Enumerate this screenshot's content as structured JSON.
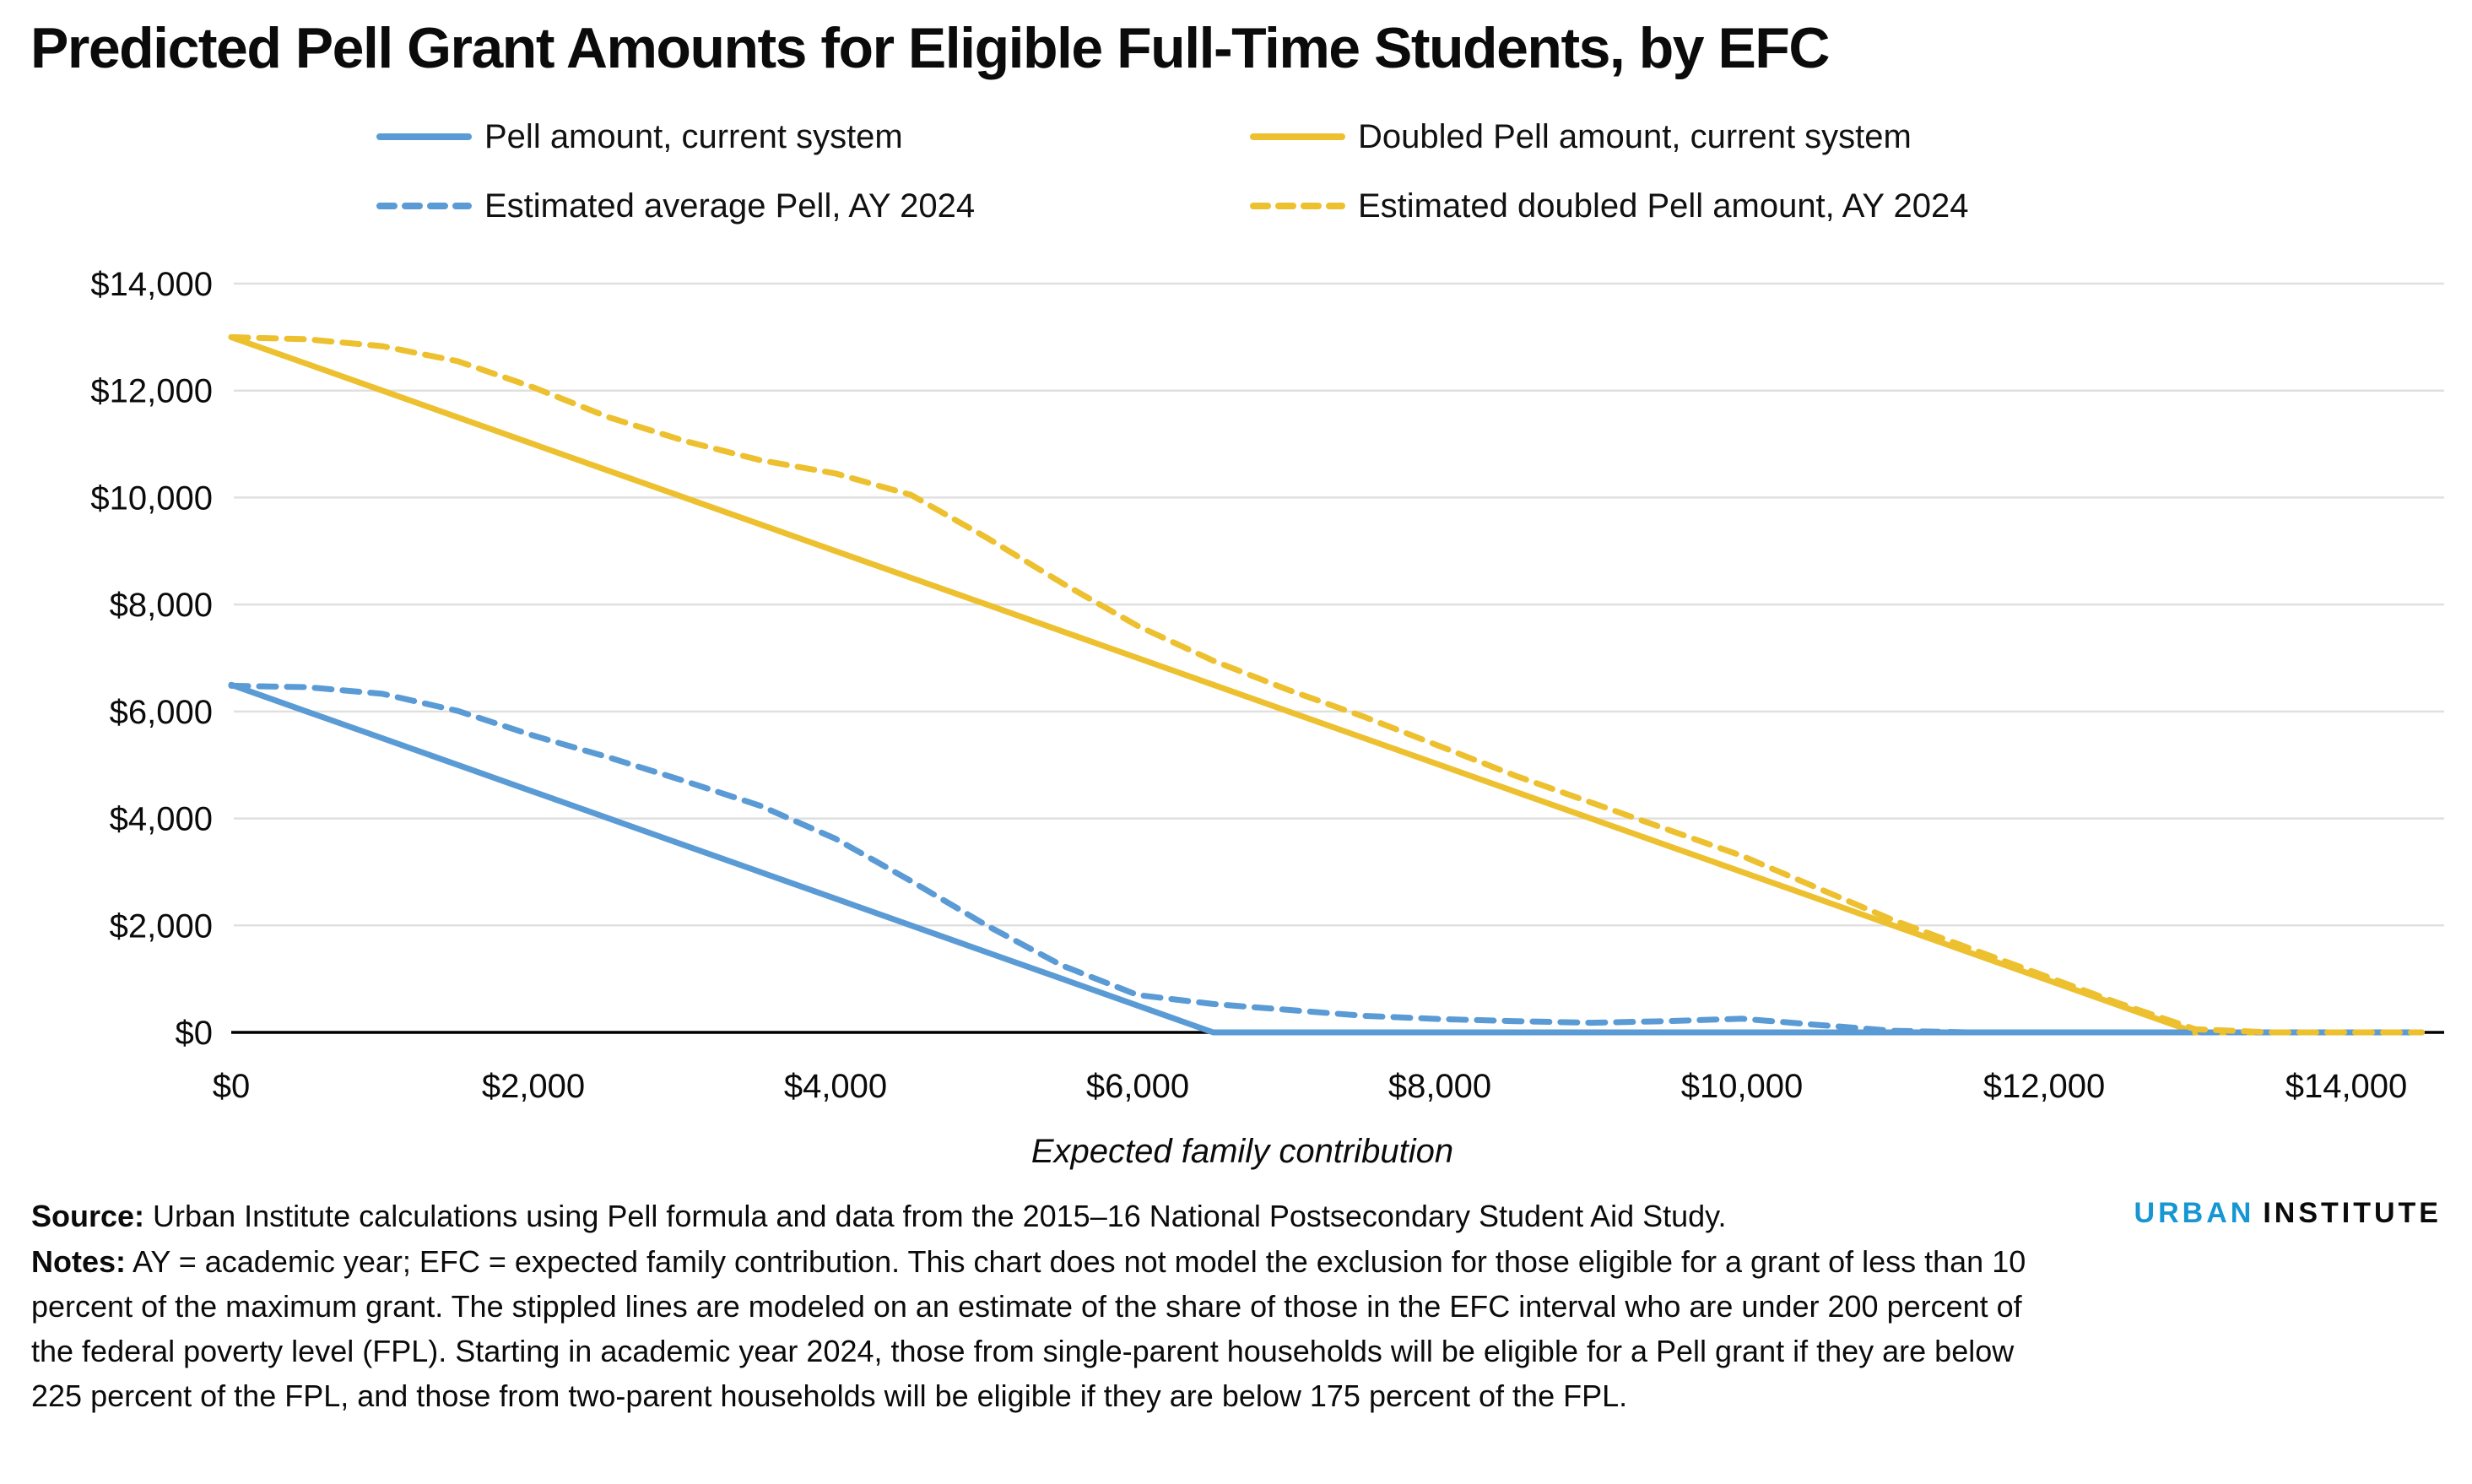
{
  "title": "Predicted Pell Grant Amounts for Eligible Full-Time Students, by EFC",
  "chart_data": {
    "type": "line",
    "xlabel": "Expected family contribution",
    "ylabel": "",
    "xlim": [
      0,
      14600
    ],
    "ylim": [
      0,
      14000
    ],
    "grid": "horizontal",
    "gridline_color": "#e0e0e0",
    "axis_color": "#000000",
    "legend_position": "top",
    "x_tick_values": [
      0,
      2000,
      4000,
      6000,
      8000,
      10000,
      12000,
      14000
    ],
    "x_tick_labels": [
      "$0",
      "$2,000",
      "$4,000",
      "$6,000",
      "$8,000",
      "$10,000",
      "$12,000",
      "$14,000"
    ],
    "y_tick_values": [
      0,
      2000,
      4000,
      6000,
      8000,
      10000,
      12000,
      14000
    ],
    "y_tick_labels": [
      "$0",
      "$2,000",
      "$4,000",
      "$6,000",
      "$8,000",
      "$10,000",
      "$12,000",
      "$14,000"
    ],
    "x": [
      0,
      500,
      1000,
      1500,
      2000,
      2500,
      3000,
      3500,
      4000,
      4500,
      5000,
      5500,
      6000,
      6500,
      7000,
      7500,
      8000,
      8500,
      9000,
      9500,
      10000,
      10500,
      11000,
      11500,
      12000,
      12500,
      13000,
      13500,
      14000,
      14500
    ],
    "series": [
      {
        "name": "Pell amount, current system",
        "color": "#5B9BD5",
        "dashed": false,
        "values": [
          6500,
          6000,
          5500,
          5000,
          4500,
          4000,
          3500,
          3000,
          2500,
          2000,
          1500,
          1000,
          500,
          0,
          0,
          0,
          0,
          0,
          0,
          0,
          0,
          0,
          0,
          0,
          0,
          0,
          0,
          0,
          0,
          0
        ]
      },
      {
        "name": "Doubled Pell amount, current system",
        "color": "#EDC02F",
        "dashed": false,
        "values": [
          13000,
          12500,
          12000,
          11500,
          11000,
          10500,
          10000,
          9500,
          9000,
          8500,
          8000,
          7500,
          7000,
          6500,
          6000,
          5500,
          5000,
          4500,
          4000,
          3500,
          3000,
          2500,
          2000,
          1500,
          1000,
          500,
          0,
          0,
          0,
          0
        ]
      },
      {
        "name": "Estimated average Pell, AY 2024",
        "color": "#5B9BD5",
        "dashed": true,
        "values": [
          6480,
          6455,
          6330,
          6010,
          5550,
          5140,
          4700,
          4240,
          3620,
          2830,
          2000,
          1250,
          700,
          530,
          420,
          310,
          250,
          210,
          180,
          210,
          255,
          140,
          30,
          0,
          0,
          0,
          0,
          0,
          0,
          0
        ]
      },
      {
        "name": "Estimated doubled Pell amount, AY 2024",
        "color": "#EDC02F",
        "dashed": true,
        "values": [
          13000,
          12960,
          12830,
          12550,
          12060,
          11500,
          11060,
          10700,
          10450,
          10050,
          9250,
          8400,
          7600,
          6950,
          6400,
          5900,
          5350,
          4800,
          4300,
          3800,
          3300,
          2700,
          2100,
          1580,
          1060,
          540,
          60,
          0,
          0,
          0
        ]
      }
    ]
  },
  "source": {
    "label": "Source:",
    "text": " Urban Institute calculations using Pell formula and data from the 2015–16 National Postsecondary Student Aid Study."
  },
  "notes": {
    "label": "Notes:",
    "text": " AY = academic year; EFC = expected family contribution. This chart does not model the exclusion for those eligible for a grant of less than 10 percent of the maximum grant. The stippled lines are modeled on an estimate of the share of those in the EFC interval who are under 200 percent of the federal poverty level (FPL). Starting in academic year 2024, those from single-parent households will be eligible for a Pell grant if they are below 225 percent of the FPL, and those from two-parent households will be eligible if they are below 175 percent of the FPL."
  },
  "logo": {
    "urban": "URBAN",
    "institute": "INSTITUTE"
  }
}
